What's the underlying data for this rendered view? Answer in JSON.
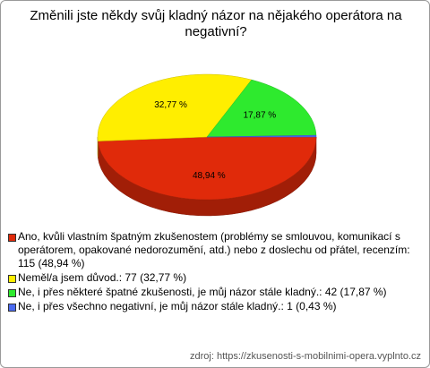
{
  "chart_data": {
    "type": "pie",
    "title": "Změnili jste někdy svůj kladný názor na nějakého operátora na negativní?",
    "categories": [
      "Ano, kvůli vlastním špatným zkušenostem (problémy se smlouvou, komunikací s operátorem, opakované nedorozumění, atd.) nebo z doslechu od přátel, recenzím: 115 (48,94 %)",
      "Neměl/a jsem důvod.: 77 (32,77 %)",
      "Ne, i přes některé špatné zkušenosti, je můj názor stále kladný.: 42 (17,87 %)",
      "Ne, i přes všechno negativní, je můj názor stále kladný.: 1 (0,43 %)"
    ],
    "values": [
      48.94,
      32.77,
      17.87,
      0.43
    ],
    "value_labels": [
      "48,94 %",
      "32,77 %",
      "17,87 %",
      null
    ],
    "colors": [
      "#e02a0a",
      "#ffee00",
      "#2eea2e",
      "#4a6af0"
    ],
    "source": "zdroj: https://zkusenosti-s-mobilnimi-opera.vyplnto.cz"
  }
}
